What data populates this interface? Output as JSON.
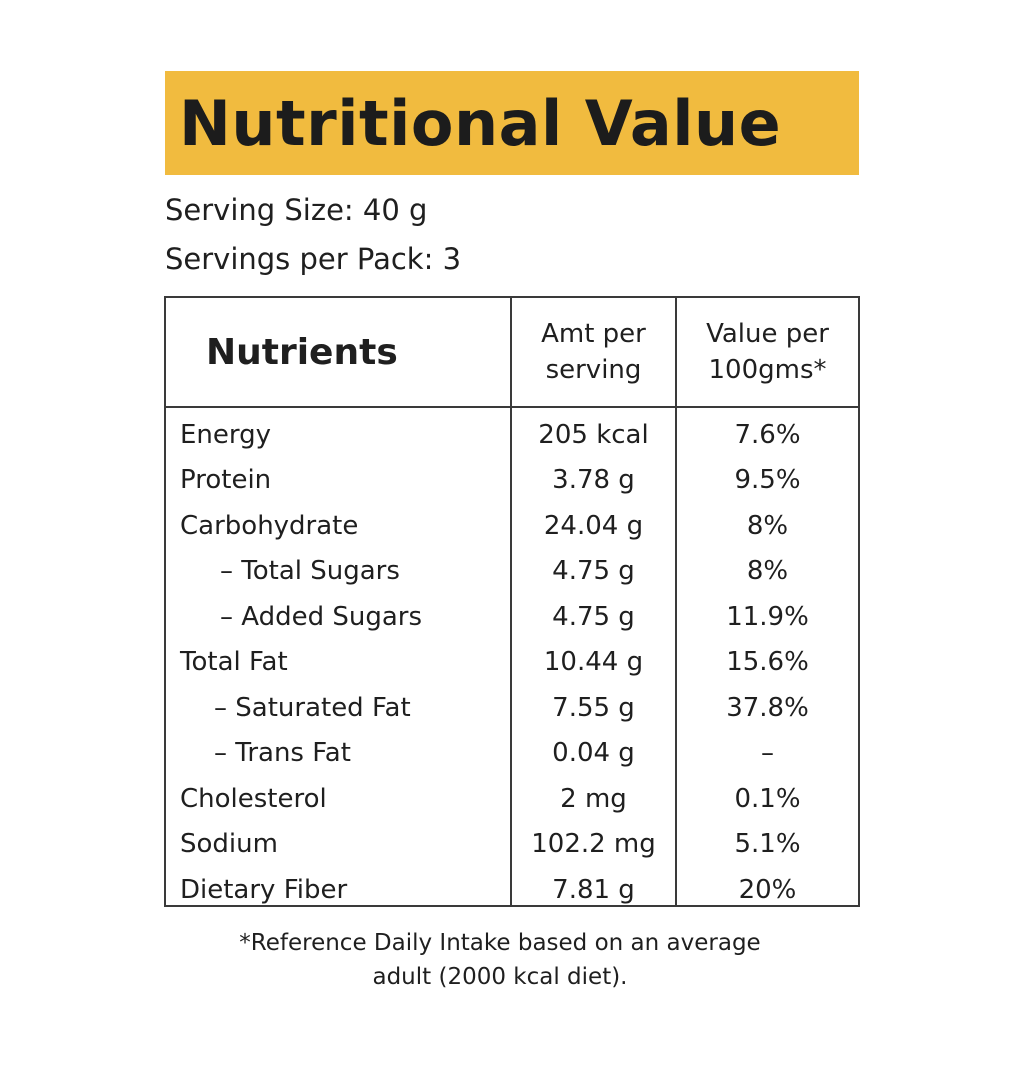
{
  "title": "Nutritional Value",
  "serving_size": "Serving Size: 40 g",
  "servings_per_pack": "Servings per Pack: 3",
  "table": {
    "headers": {
      "nutrients": "Nutrients",
      "amt_line1": "Amt per",
      "amt_line2": "serving",
      "val_line1": "Value per",
      "val_line2": "100gms*"
    },
    "rows": [
      {
        "name": "Energy",
        "amount": "205 kcal",
        "value": "7.6%"
      },
      {
        "name": "Protein",
        "amount": "3.78 g",
        "value": "9.5%"
      },
      {
        "name": "Carbohydrate",
        "amount": "24.04 g",
        "value": "8%"
      },
      {
        "name": "– Total Sugars",
        "amount": "4.75 g",
        "value": "8%"
      },
      {
        "name": "– Added Sugars",
        "amount": "4.75 g",
        "value": "11.9%"
      },
      {
        "name": "Total Fat",
        "amount": "10.44 g",
        "value": "15.6%"
      },
      {
        "name": "– Saturated Fat",
        "amount": "7.55 g",
        "value": "37.8%"
      },
      {
        "name": "– Trans Fat",
        "amount": "0.04 g",
        "value": "–"
      },
      {
        "name": "Cholesterol",
        "amount": "2 mg",
        "value": "0.1%"
      },
      {
        "name": "Sodium",
        "amount": "102.2 mg",
        "value": "5.1%"
      },
      {
        "name": "Dietary Fiber",
        "amount": "7.81 g",
        "value": "20%"
      }
    ]
  },
  "footnote_line1": "*Reference Daily Intake based on an average",
  "footnote_line2": "adult (2000 kcal diet).",
  "colors": {
    "banner": "#f1bb3f",
    "border": "#3a3a3a",
    "text": "#1f1f1f"
  }
}
